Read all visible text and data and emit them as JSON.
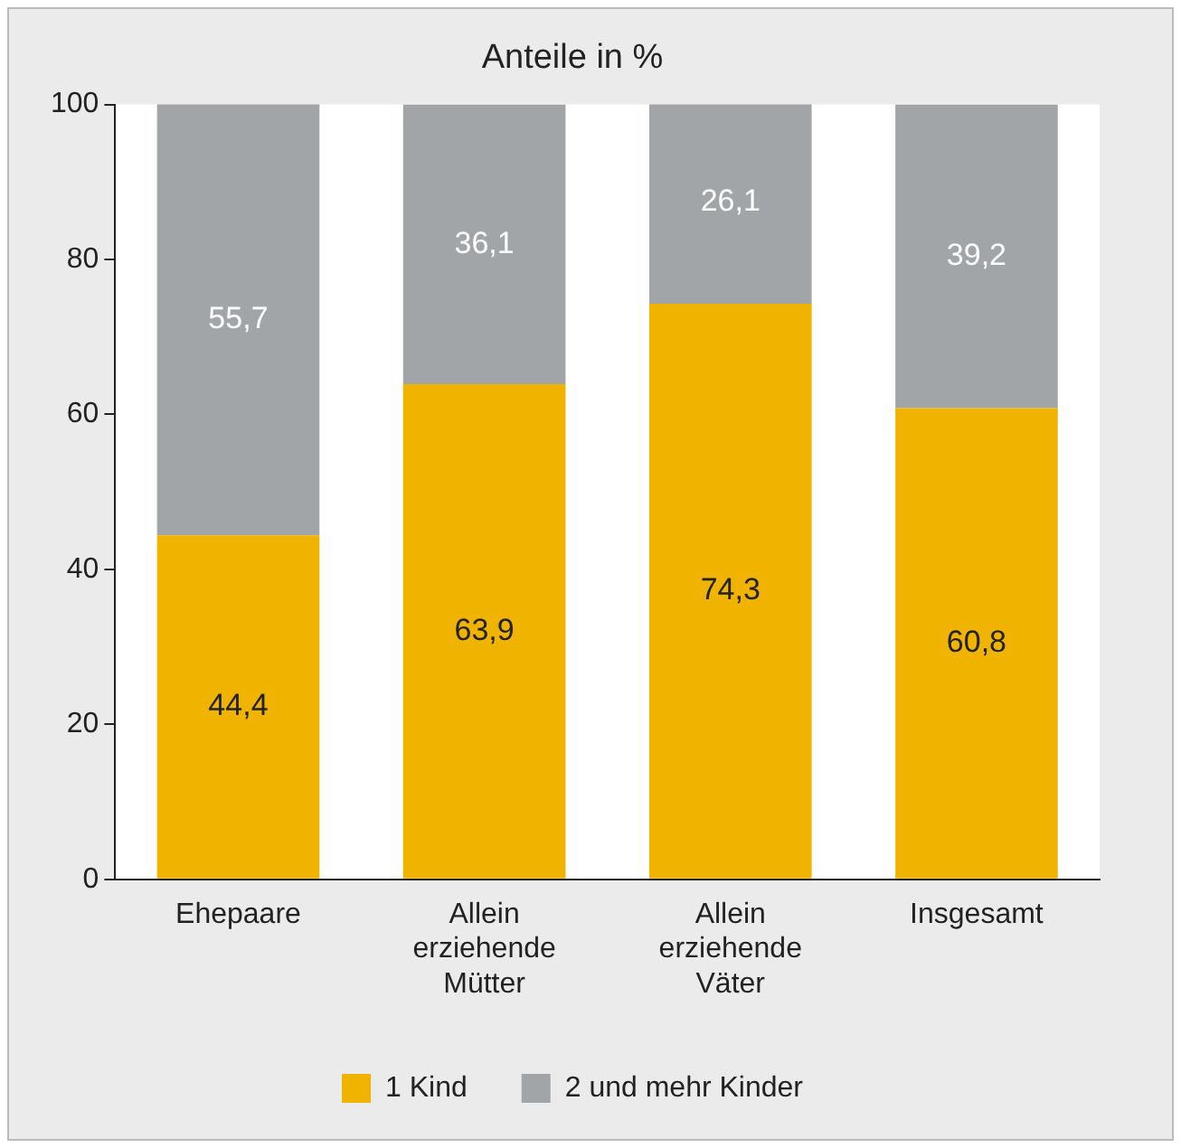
{
  "chart_data": {
    "type": "bar",
    "title": "Anteile in %",
    "categories": [
      "Ehepaare",
      "Allein erziehende Mütter",
      "Allein erziehende Väter",
      "Insgesamt"
    ],
    "series": [
      {
        "name": "1 Kind",
        "color": "#f0b400",
        "values": [
          44.4,
          63.9,
          74.3,
          60.8
        ],
        "value_labels": [
          "44,4",
          "63,9",
          "74,3",
          "60,8"
        ]
      },
      {
        "name": "2 und mehr Kinder",
        "color": "#a2a5a8",
        "values": [
          55.7,
          36.1,
          26.1,
          39.2
        ],
        "value_labels": [
          "55,7",
          "36,1",
          "26,1",
          "39,2"
        ]
      }
    ],
    "stacked": true,
    "ylim": [
      0,
      100
    ],
    "yticks": [
      0,
      20,
      40,
      60,
      80,
      100
    ],
    "grid": false,
    "legend": "bottom"
  }
}
